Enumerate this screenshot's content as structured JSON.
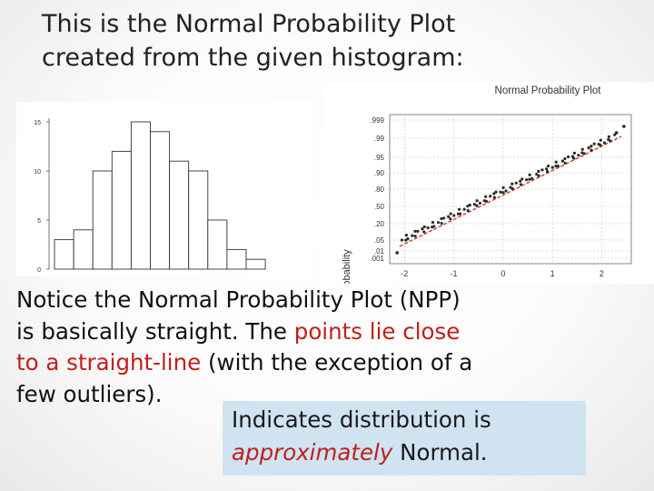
{
  "slide": {
    "title_line1": "This is the Normal Probability Plot",
    "title_line2": "created from the given histogram:",
    "body_line1": "Notice the Normal Probability Plot (NPP)",
    "body_line2_a": "is basically straight. The ",
    "body_line2_b": "points lie close",
    "body_line3_a": "to a straight-line",
    "body_line3_b": " (with the exception of a",
    "body_line4": "few outliers).",
    "callout_line1": "Indicates distribution is",
    "callout_em": "approximately",
    "callout_rest": "  Normal."
  },
  "colors": {
    "text_red": "#c0201c",
    "callout_bg": "#cfe3f0",
    "fit_line": "#d43a32",
    "points": "#2b2b2b"
  },
  "histogram": {
    "y_ticks": [
      "0",
      "5",
      "10",
      "15"
    ],
    "y_max": 15,
    "bar_heights": [
      3,
      4,
      10,
      12,
      15,
      14,
      11,
      10,
      5,
      2,
      1
    ]
  },
  "npp": {
    "title": "Normal Probability Plot",
    "ylabel": "Probability",
    "y_ticks": [
      ".999",
      ".99",
      ".95",
      ".90",
      ".80",
      ".50",
      ".20",
      ".05",
      ".01",
      ".001"
    ],
    "x_ticks": [
      "-2",
      "-1",
      "0",
      "1",
      "2"
    ],
    "x_range": [
      -2.3,
      2.6
    ]
  }
}
